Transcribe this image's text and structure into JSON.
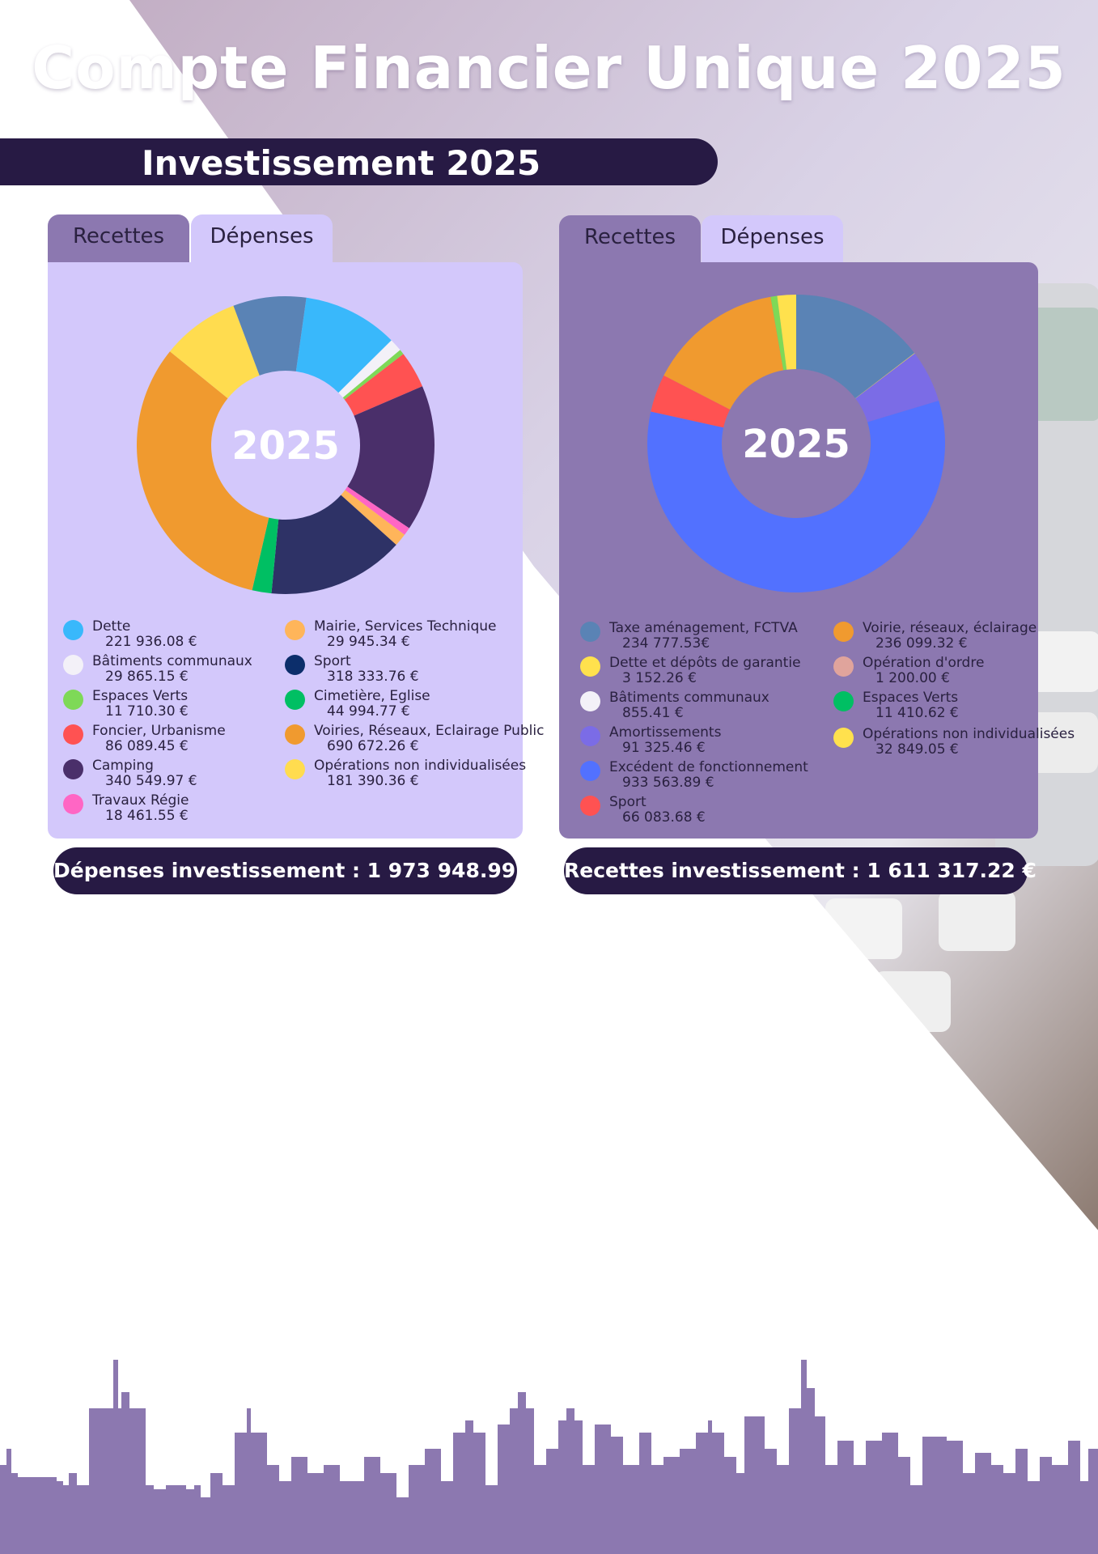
{
  "page": {
    "title": "Compte Financier Unique 2025",
    "section_title": "Investissement 2025"
  },
  "colors": {
    "dark": "#271a44",
    "purple": "#8c78b0",
    "lavender": "#d3c8fb"
  },
  "left_panel": {
    "tabs": [
      {
        "label": "Recettes"
      },
      {
        "label": "Dépenses"
      }
    ],
    "center_label": "2025",
    "total": "Dépenses investissement : 1 973 948.99 €",
    "legend": [
      {
        "label": "Dette",
        "value": "221 936.08 €",
        "color": "#39b8fb"
      },
      {
        "label": "Bâtiments communaux",
        "value": "29 865.15 €",
        "color": "#f3f1f8"
      },
      {
        "label": "Espaces Verts",
        "value": "11 710.30 €",
        "color": "#7ed957"
      },
      {
        "label": "Foncier, Urbanisme",
        "value": "86 089.45 €",
        "color": "#ff5252"
      },
      {
        "label": "Camping",
        "value": "340 549.97 €",
        "color": "#4a2f6a"
      },
      {
        "label": "Travaux Régie",
        "value": "18 461.55 €",
        "color": "#ff66c4"
      },
      {
        "label": "Mairie, Services Technique",
        "value": "29 945.34 €",
        "color": "#ffb55a"
      },
      {
        "label": "Sport",
        "value": "318 333.76 €",
        "color": "#0c2e6b"
      },
      {
        "label": "Cimetière, Eglise",
        "value": "44 994.77 €",
        "color": "#00bf63"
      },
      {
        "label": "Voiries, Réseaux, Eclairage Public",
        "value": "690 672.26 €",
        "color": "#f09a2f"
      },
      {
        "label": "Opérations non individualisées",
        "value": "181 390.36 €",
        "color": "#ffdc4f"
      }
    ]
  },
  "right_panel": {
    "tabs": [
      {
        "label": "Recettes"
      },
      {
        "label": "Dépenses"
      }
    ],
    "center_label": "2025",
    "total": "Recettes investissement : 1 611 317.22 €",
    "legend": [
      {
        "label": "Taxe aménagement, FCTVA",
        "value": "234 777.53€",
        "color": "#5a83b5"
      },
      {
        "label": "Dette et dépôts de garantie",
        "value": "3 152.26 €",
        "color": "#ffe14d"
      },
      {
        "label": "Bâtiments communaux",
        "value": "855.41 €",
        "color": "#f3f1f8"
      },
      {
        "label": "Amortissements",
        "value": "91 325.46 €",
        "color": "#7b6ce6"
      },
      {
        "label": "Excédent de fonctionnement",
        "value": "933 563.89 €",
        "color": "#5271ff"
      },
      {
        "label": "Sport",
        "value": "66 083.68 €",
        "color": "#ff5252"
      },
      {
        "label": "Voirie, réseaux, éclairage",
        "value": "236 099.32 €",
        "color": "#f09a2f"
      },
      {
        "label": "Opération d'ordre",
        "value": "1 200.00 €",
        "color": "#e0a49c"
      },
      {
        "label": "Espaces Verts",
        "value": "11 410.62 €",
        "color": "#00bf63"
      },
      {
        "label": "Opérations non individualisées",
        "value": "32 849.05 €",
        "color": "#ffe14d"
      }
    ]
  },
  "chart_data": [
    {
      "type": "pie",
      "title": "",
      "categories": [
        "Dette",
        "Bâtiments communaux",
        "Espaces Verts",
        "Foncier, Urbanisme",
        "Camping",
        "Travaux Régie",
        "Mairie, Services Technique",
        "Sport",
        "Cimetière, Eglise",
        "Voiries, Réseaux, Eclairage Public",
        "Opérations non individualisées"
      ],
      "values": [
        221936.08,
        29865.15,
        11710.3,
        86089.45,
        340549.97,
        18461.55,
        29945.34,
        318333.76,
        44994.77,
        690672.26,
        181390.36
      ],
      "colors": [
        "#39b8fb",
        "#f3f1f8",
        "#7ed957",
        "#ff5252",
        "#4a2f6a",
        "#ff66c4",
        "#ffb55a",
        "#2e3266",
        "#00bf63",
        "#f09a2f",
        "#ffdc4f"
      ],
      "extra_slices": [
        {
          "after": 10,
          "value": 170000,
          "color": "#5a83b5"
        }
      ]
    },
    {
      "type": "pie",
      "title": "",
      "categories": [
        "Taxe aménagement, FCTVA",
        "Bâtiments communaux",
        "Amortissements",
        "Excédent de fonctionnement",
        "Sport",
        "Voirie, réseaux, éclairage",
        "Espaces Verts",
        "Opérations non individualisées"
      ],
      "values": [
        234777.53,
        855.41,
        91325.46,
        933563.89,
        66083.68,
        236099.32,
        11410.62,
        32849.05
      ],
      "colors": [
        "#5a83b5",
        "#ffe14d",
        "#7b6ce6",
        "#5271ff",
        "#ff5252",
        "#f09a2f",
        "#7ed957",
        "#ffe14d"
      ]
    }
  ]
}
